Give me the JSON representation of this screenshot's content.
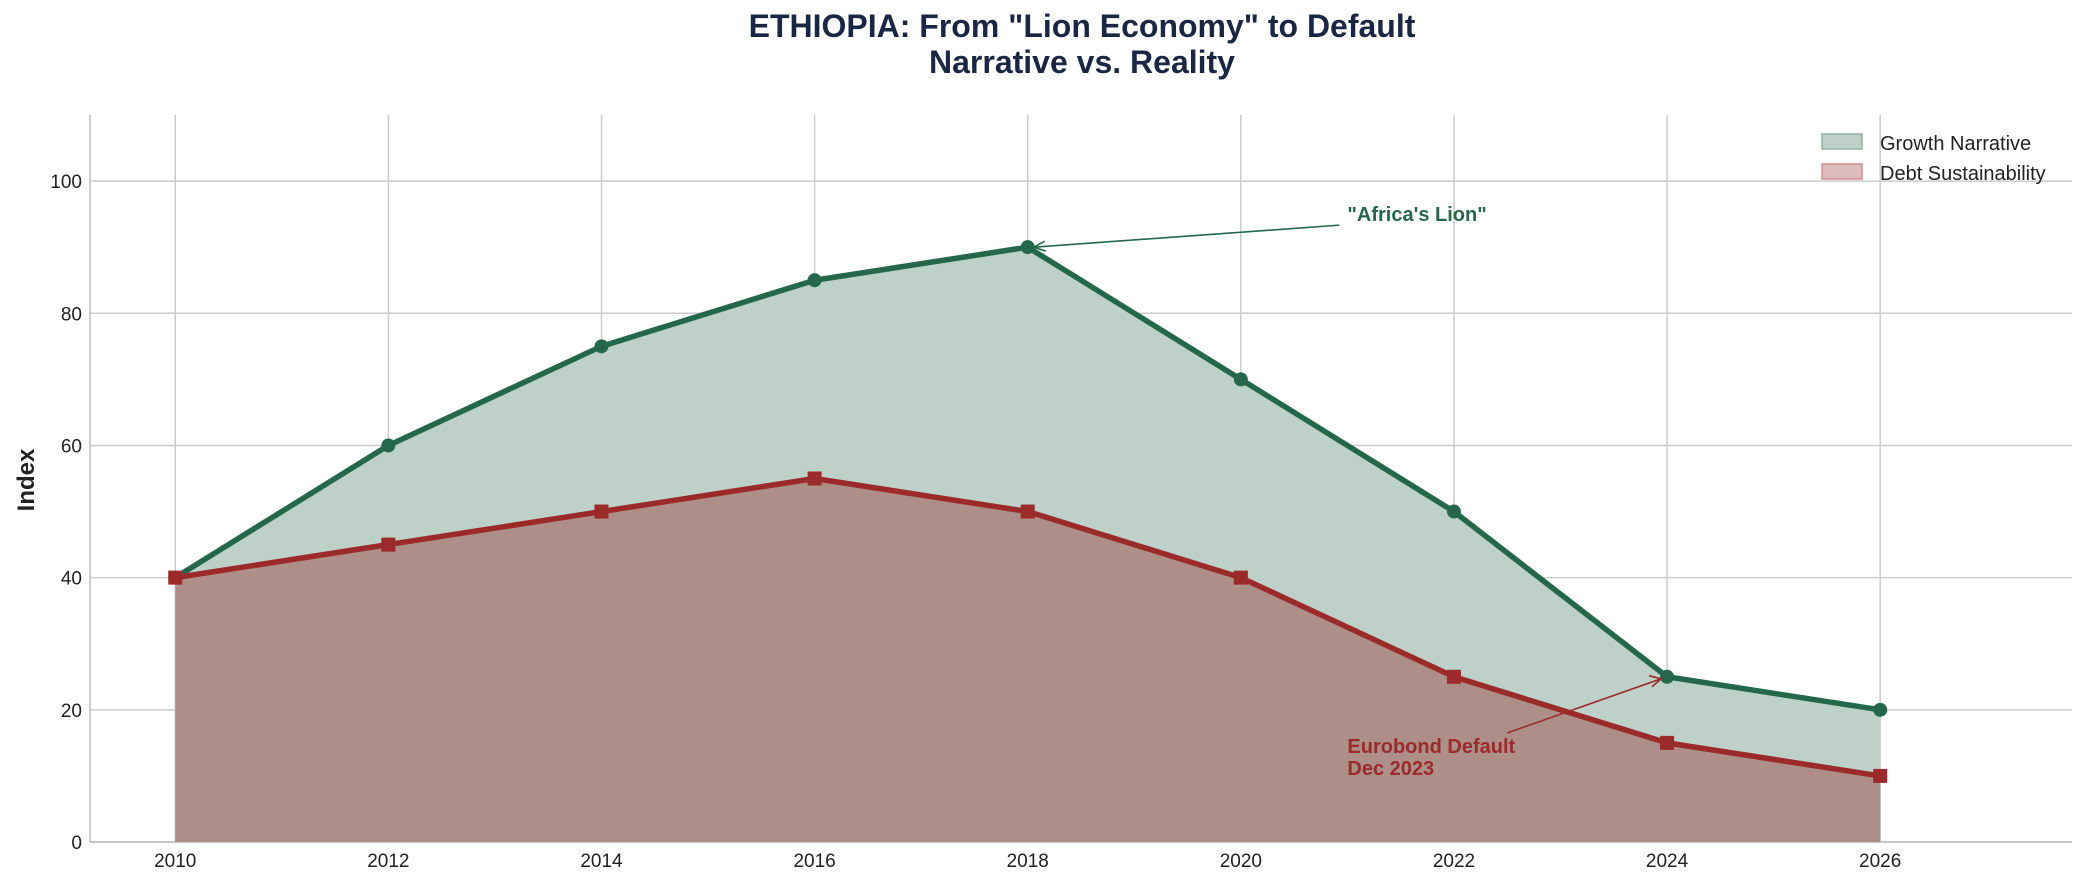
{
  "chart_data": {
    "type": "area",
    "title": "ETHIOPIA: From \"Lion Economy\" to Default",
    "subtitle": "Narrative vs. Reality",
    "xlabel": "",
    "ylabel": "Index",
    "x": [
      2010,
      2012,
      2014,
      2016,
      2018,
      2020,
      2022,
      2024,
      2026
    ],
    "xticks": [
      "2010",
      "2012",
      "2014",
      "2016",
      "2018",
      "2020",
      "2022",
      "2024",
      "2026"
    ],
    "yticks": [
      "0",
      "20",
      "40",
      "60",
      "80",
      "100"
    ],
    "xlim": [
      2009.2,
      2027.8
    ],
    "ylim": [
      0,
      110
    ],
    "grid": true,
    "legend_position": "top-right",
    "series": [
      {
        "name": "Growth Narrative",
        "values": [
          40,
          60,
          75,
          85,
          90,
          70,
          50,
          25,
          20
        ],
        "color": "#25674a",
        "fill": "#bed1c9",
        "marker": "circle"
      },
      {
        "name": "Debt Sustainability",
        "values": [
          40,
          45,
          50,
          55,
          50,
          40,
          25,
          15,
          10
        ],
        "color": "#9b2a2a",
        "fill": "#dfbdbd",
        "marker": "square"
      }
    ],
    "annotations": [
      {
        "text": "\"Africa's Lion\"",
        "point": [
          2018,
          90
        ],
        "text_at": [
          2021,
          95
        ],
        "color": "#25674a"
      },
      {
        "text": "Eurobond Default\nDec 2023",
        "line1": "Eurobond Default",
        "line2": "Dec 2023",
        "point": [
          2024,
          25
        ],
        "text_at": [
          2021,
          12
        ],
        "color": "#9b2a2a"
      }
    ],
    "title_color": "#1a2744"
  }
}
